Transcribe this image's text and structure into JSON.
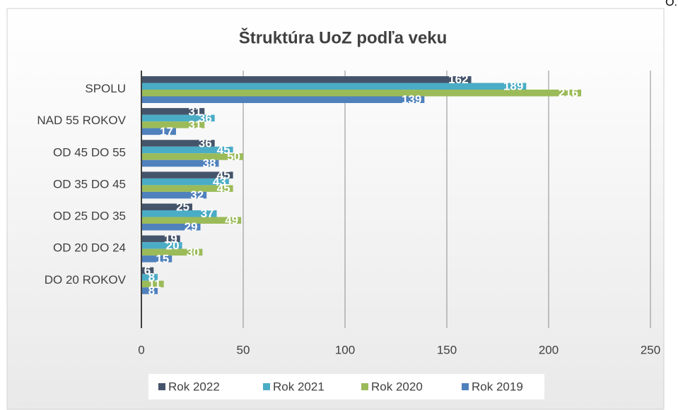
{
  "corner_text": "O.",
  "chart_data": {
    "type": "bar",
    "orientation": "horizontal",
    "title": "Štruktúra UoZ podľa veku",
    "categories": [
      "SPOLU",
      "NAD 55 ROKOV",
      "OD 45 DO 55",
      "OD 35 DO 45",
      "OD 25 DO 35",
      "OD 20 DO 24",
      "DO 20 ROKOV",
      null
    ],
    "series": [
      {
        "name": "Rok 2022",
        "color": "#44546a",
        "values": [
          162,
          31,
          36,
          45,
          25,
          19,
          6,
          null
        ]
      },
      {
        "name": "Rok 2021",
        "color": "#4bacc6",
        "values": [
          189,
          36,
          45,
          43,
          37,
          20,
          8,
          null
        ]
      },
      {
        "name": "Rok 2020",
        "color": "#9bbb59",
        "values": [
          216,
          31,
          50,
          45,
          49,
          30,
          11,
          null
        ]
      },
      {
        "name": "Rok 2019",
        "color": "#4f81bd",
        "values": [
          139,
          17,
          38,
          32,
          29,
          15,
          8,
          null
        ]
      }
    ],
    "xlim": [
      0,
      250
    ],
    "xticks": [
      0,
      50,
      100,
      150,
      200,
      250
    ],
    "grid": true,
    "legend": "bottom"
  }
}
